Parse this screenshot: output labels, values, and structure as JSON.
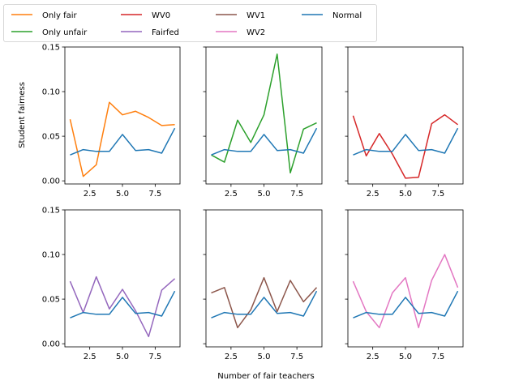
{
  "chart_data": {
    "type": "line",
    "xlabel": "Number of fair teachers",
    "ylabel": "Student fairness",
    "x": [
      1,
      2,
      3,
      4,
      5,
      6,
      7,
      8,
      9
    ],
    "xticks": [
      2.5,
      5.0,
      7.5
    ],
    "xtick_labels": [
      "2.5",
      "5.0",
      "7.5"
    ],
    "yticks": [
      0.0,
      0.05,
      0.1,
      0.15
    ],
    "ytick_labels": [
      "0.00",
      "0.05",
      "0.10",
      "0.15"
    ],
    "xlim": [
      0.6,
      9.4
    ],
    "ylim": [
      -0.0035,
      0.15
    ],
    "legend": {
      "placement": "top-left",
      "columns": 4,
      "entries": [
        {
          "name": "Only fair",
          "color": "#ff7f0e"
        },
        {
          "name": "Only unfair",
          "color": "#2ca02c"
        },
        {
          "name": "WV0",
          "color": "#d62728"
        },
        {
          "name": "Fairfed",
          "color": "#9467bd"
        },
        {
          "name": "WV1",
          "color": "#8c564b"
        },
        {
          "name": "WV2",
          "color": "#e377c2"
        },
        {
          "name": "Normal",
          "color": "#1f77b4"
        }
      ]
    },
    "normal": {
      "name": "Normal",
      "color": "#1f77b4",
      "values": [
        0.029,
        0.035,
        0.033,
        0.033,
        0.052,
        0.034,
        0.035,
        0.031,
        0.059
      ]
    },
    "panels": [
      {
        "series": [
          {
            "name": "Only fair",
            "color": "#ff7f0e",
            "values": [
              0.069,
              0.005,
              0.018,
              0.088,
              0.074,
              0.078,
              0.071,
              0.062,
              0.063
            ]
          }
        ]
      },
      {
        "series": [
          {
            "name": "Only unfair",
            "color": "#2ca02c",
            "values": [
              0.029,
              0.021,
              0.068,
              0.043,
              0.074,
              0.142,
              0.009,
              0.058,
              0.065
            ]
          }
        ]
      },
      {
        "series": [
          {
            "name": "WV0",
            "color": "#d62728",
            "values": [
              0.073,
              0.028,
              0.053,
              0.03,
              0.003,
              0.004,
              0.064,
              0.074,
              0.063
            ]
          }
        ]
      },
      {
        "series": [
          {
            "name": "Fairfed",
            "color": "#9467bd",
            "values": [
              0.07,
              0.035,
              0.075,
              0.039,
              0.061,
              0.037,
              0.008,
              0.06,
              0.073
            ]
          }
        ]
      },
      {
        "series": [
          {
            "name": "WV1",
            "color": "#8c564b",
            "values": [
              0.057,
              0.063,
              0.018,
              0.038,
              0.074,
              0.036,
              0.071,
              0.047,
              0.063
            ]
          }
        ]
      },
      {
        "series": [
          {
            "name": "WV2",
            "color": "#e377c2",
            "values": [
              0.07,
              0.036,
              0.018,
              0.057,
              0.074,
              0.018,
              0.071,
              0.1,
              0.063
            ]
          }
        ]
      }
    ]
  }
}
